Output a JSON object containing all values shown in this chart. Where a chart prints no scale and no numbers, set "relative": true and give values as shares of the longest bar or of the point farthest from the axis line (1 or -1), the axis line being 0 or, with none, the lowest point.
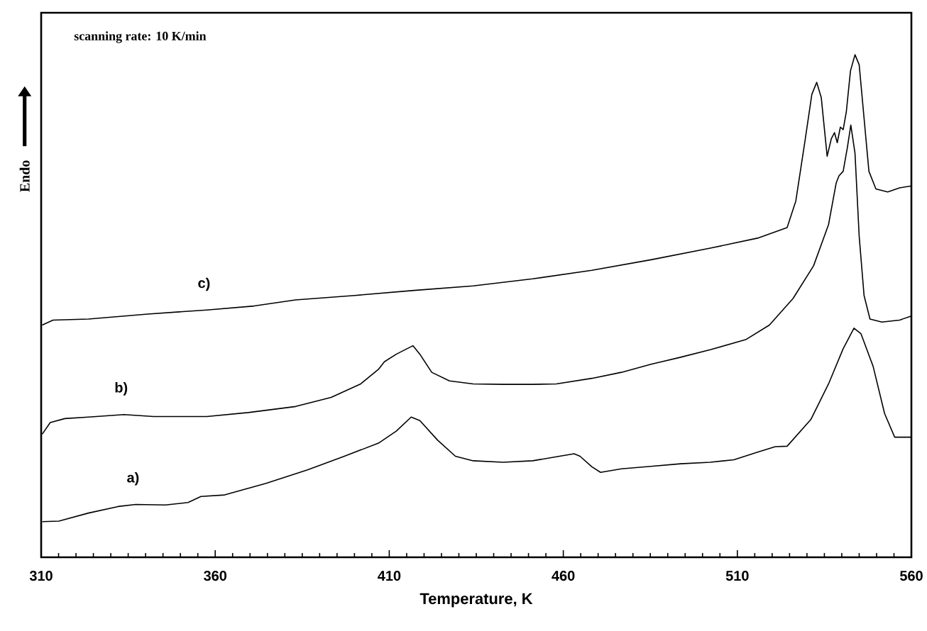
{
  "chart_data": {
    "type": "line",
    "relative": true,
    "xlabel": "Temperature, K",
    "ylabel": "Endo",
    "annotations": [
      "scanning rate: 10 K/min"
    ],
    "xlim": [
      310,
      560
    ],
    "xticks": [
      310,
      360,
      410,
      460,
      510,
      560
    ],
    "tick_labels": "x",
    "line_style": "solid",
    "series": [
      {
        "name": "a)",
        "color": "#000000",
        "x": [
          310.3,
          315.1,
          323.6,
          332.1,
          337.2,
          345.7,
          352.2,
          355.9,
          362.7,
          374.6,
          386.5,
          396.7,
          406.9,
          412.0,
          416.3,
          418.8,
          423.9,
          429.0,
          434.1,
          442.7,
          451.2,
          458.0,
          463.1,
          464.8,
          468.2,
          470.7,
          476.7,
          485.2,
          493.7,
          502.2,
          509.0,
          515.8,
          520.9,
          524.3,
          531.1,
          536.2,
          540.4,
          543.5,
          545.5,
          549.0,
          552.3,
          555.2,
          560
        ],
        "values": [
          0.071,
          0.072,
          0.088,
          0.101,
          0.105,
          0.104,
          0.109,
          0.121,
          0.124,
          0.147,
          0.174,
          0.2,
          0.227,
          0.251,
          0.279,
          0.272,
          0.233,
          0.201,
          0.192,
          0.189,
          0.192,
          0.2,
          0.206,
          0.201,
          0.18,
          0.169,
          0.176,
          0.181,
          0.186,
          0.189,
          0.194,
          0.209,
          0.22,
          0.221,
          0.274,
          0.345,
          0.415,
          0.456,
          0.445,
          0.38,
          0.286,
          0.239,
          0.239
        ]
      },
      {
        "name": "b)",
        "color": "#000000",
        "x": [
          310.3,
          312.6,
          316.8,
          323.6,
          333.8,
          342.3,
          357.6,
          369.5,
          383.1,
          393.3,
          401.8,
          406.9,
          408.6,
          412.0,
          416.8,
          418.8,
          422.2,
          427.3,
          434.1,
          442.7,
          451.2,
          458.0,
          468.2,
          476.7,
          485.2,
          493.7,
          502.2,
          512.4,
          519.2,
          526.0,
          531.9,
          536.2,
          538.4,
          539.2,
          540.4,
          541.6,
          542.6,
          543.8,
          545.0,
          546.4,
          548.1,
          551.5,
          556.6,
          560
        ],
        "values": [
          0.245,
          0.268,
          0.276,
          0.279,
          0.284,
          0.28,
          0.28,
          0.288,
          0.3,
          0.318,
          0.345,
          0.374,
          0.389,
          0.404,
          0.421,
          0.404,
          0.368,
          0.351,
          0.345,
          0.344,
          0.344,
          0.345,
          0.356,
          0.368,
          0.384,
          0.398,
          0.413,
          0.433,
          0.462,
          0.515,
          0.58,
          0.662,
          0.745,
          0.759,
          0.768,
          0.815,
          0.86,
          0.804,
          0.639,
          0.521,
          0.474,
          0.468,
          0.472,
          0.48
        ]
      },
      {
        "name": "c)",
        "color": "#000000",
        "x": [
          310.3,
          313.4,
          323.6,
          340.6,
          357.6,
          371.2,
          383.1,
          400.1,
          417.1,
          434.1,
          451.2,
          468.2,
          485.2,
          502.2,
          515.8,
          524.3,
          526.8,
          529.4,
          531.4,
          532.8,
          534.1,
          535.8,
          537.0,
          537.9,
          538.7,
          539.6,
          540.4,
          541.3,
          542.5,
          543.8,
          545.0,
          546.4,
          547.8,
          549.8,
          553.2,
          556.6,
          560
        ],
        "values": [
          0.462,
          0.472,
          0.474,
          0.484,
          0.492,
          0.5,
          0.512,
          0.521,
          0.531,
          0.54,
          0.554,
          0.571,
          0.592,
          0.615,
          0.635,
          0.656,
          0.709,
          0.827,
          0.921,
          0.945,
          0.915,
          0.798,
          0.833,
          0.845,
          0.825,
          0.856,
          0.851,
          0.886,
          0.968,
          1.0,
          0.98,
          0.874,
          0.768,
          0.733,
          0.727,
          0.735,
          0.739
        ]
      }
    ]
  }
}
